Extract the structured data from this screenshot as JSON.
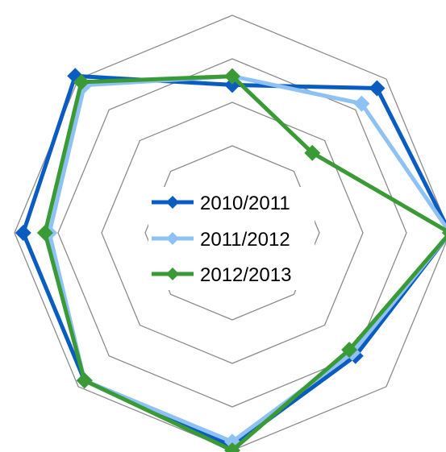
{
  "chart_data": {
    "type": "radar",
    "title": "",
    "axes_count": 8,
    "rmax": 5,
    "grid_levels": 5,
    "grid": true,
    "legend_placement": "center",
    "series": [
      {
        "name": "2010/2011",
        "color": "#0b5cc0",
        "values": [
          3.4,
          4.7,
          5.0,
          4.0,
          4.9,
          4.8,
          4.8,
          5.1
        ]
      },
      {
        "name": "2011/2012",
        "color": "#8ec1f4",
        "values": [
          3.6,
          4.2,
          5.0,
          3.9,
          4.8,
          4.8,
          4.2,
          4.8
        ]
      },
      {
        "name": "2012/2013",
        "color": "#3a9a35",
        "values": [
          3.6,
          2.6,
          5.0,
          3.8,
          5.0,
          4.8,
          4.3,
          4.9
        ]
      }
    ]
  }
}
